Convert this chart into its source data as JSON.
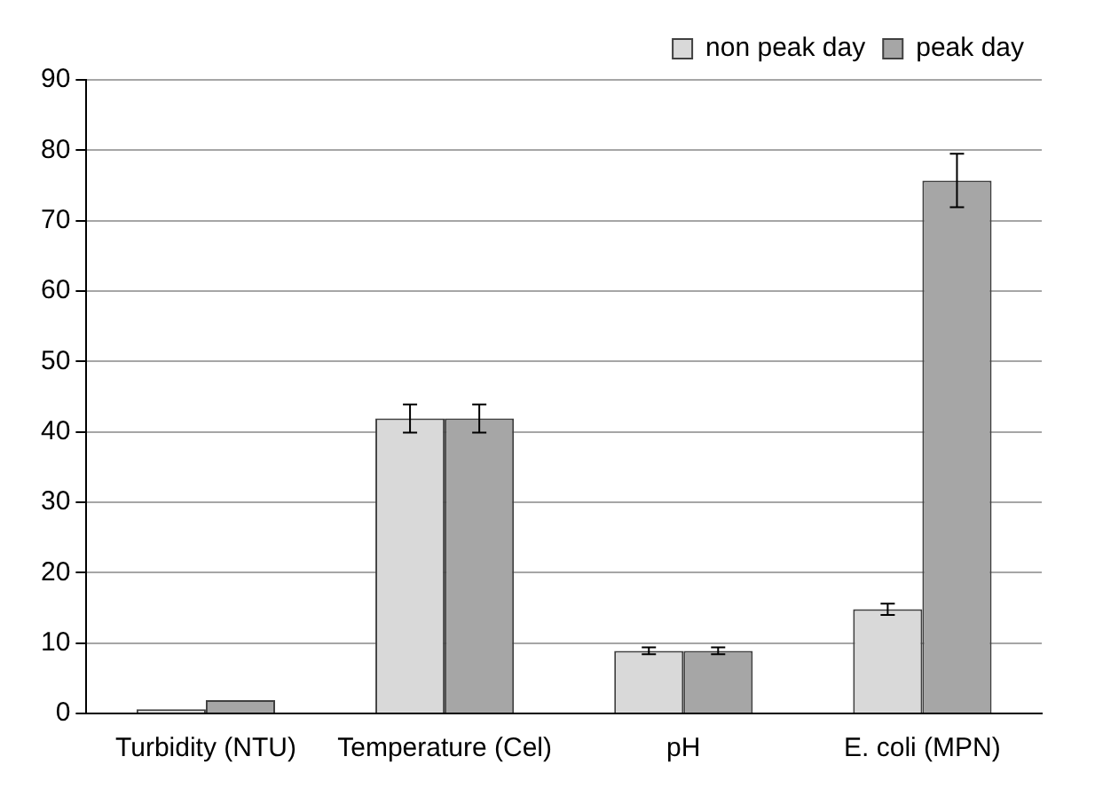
{
  "chart_data": {
    "type": "bar",
    "categories": [
      "Turbidity (NTU)",
      "Temperature (Cel)",
      "pH",
      "E. coli (MPN)"
    ],
    "series": [
      {
        "name": "non peak day",
        "color": "#d9d9d9",
        "values": [
          0.6,
          41.9,
          8.9,
          14.8
        ],
        "errors": [
          null,
          2,
          0.5,
          0.8
        ]
      },
      {
        "name": "peak day",
        "color": "#a6a6a6",
        "values": [
          1.9,
          41.9,
          8.9,
          75.7
        ],
        "errors": [
          null,
          2,
          0.5,
          3.8
        ]
      }
    ],
    "ylim": [
      0,
      90
    ],
    "yticks": [
      0,
      10,
      20,
      30,
      40,
      50,
      60,
      70,
      80,
      90
    ],
    "grid": "y",
    "legend": "top right"
  }
}
